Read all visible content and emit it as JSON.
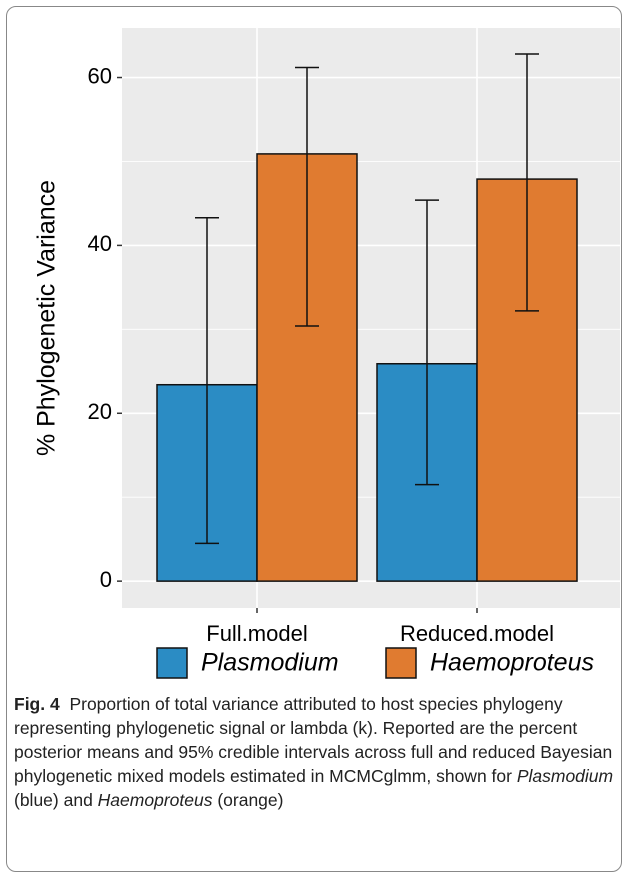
{
  "chart_data": {
    "type": "bar",
    "y_label": "% Phylogenetic Variance",
    "categories": [
      "Full.model",
      "Reduced.model"
    ],
    "series": [
      {
        "name": "Plasmodium",
        "color": "#2b8cc4",
        "values": [
          23.4,
          25.9
        ],
        "lower": [
          4.5,
          11.5
        ],
        "upper": [
          43.3,
          45.4
        ]
      },
      {
        "name": "Haemoproteus",
        "color": "#e07b30",
        "values": [
          50.9,
          47.9
        ],
        "lower": [
          30.4,
          32.2
        ],
        "upper": [
          61.2,
          62.8
        ]
      }
    ],
    "ylim": [
      -3.2,
      65.9
    ],
    "yticks": [
      0,
      20,
      40,
      60
    ],
    "grid": true,
    "legend": "bottom",
    "caption_label": "Fig. 4",
    "caption_parts": [
      {
        "text": "Proportion of total variance attributed to host species phylogeny representing phylogenetic signal or lambda (k). Reported are the percent posterior means and 95% credible intervals across full and reduced Bayesian phylogenetic mixed models estimated in MCMCglmm, shown for ",
        "italic": false
      },
      {
        "text": "Plasmodium",
        "italic": true
      },
      {
        "text": " (blue) and ",
        "italic": false
      },
      {
        "text": "Haemoproteus",
        "italic": true
      },
      {
        "text": " (orange)",
        "italic": false
      }
    ]
  }
}
